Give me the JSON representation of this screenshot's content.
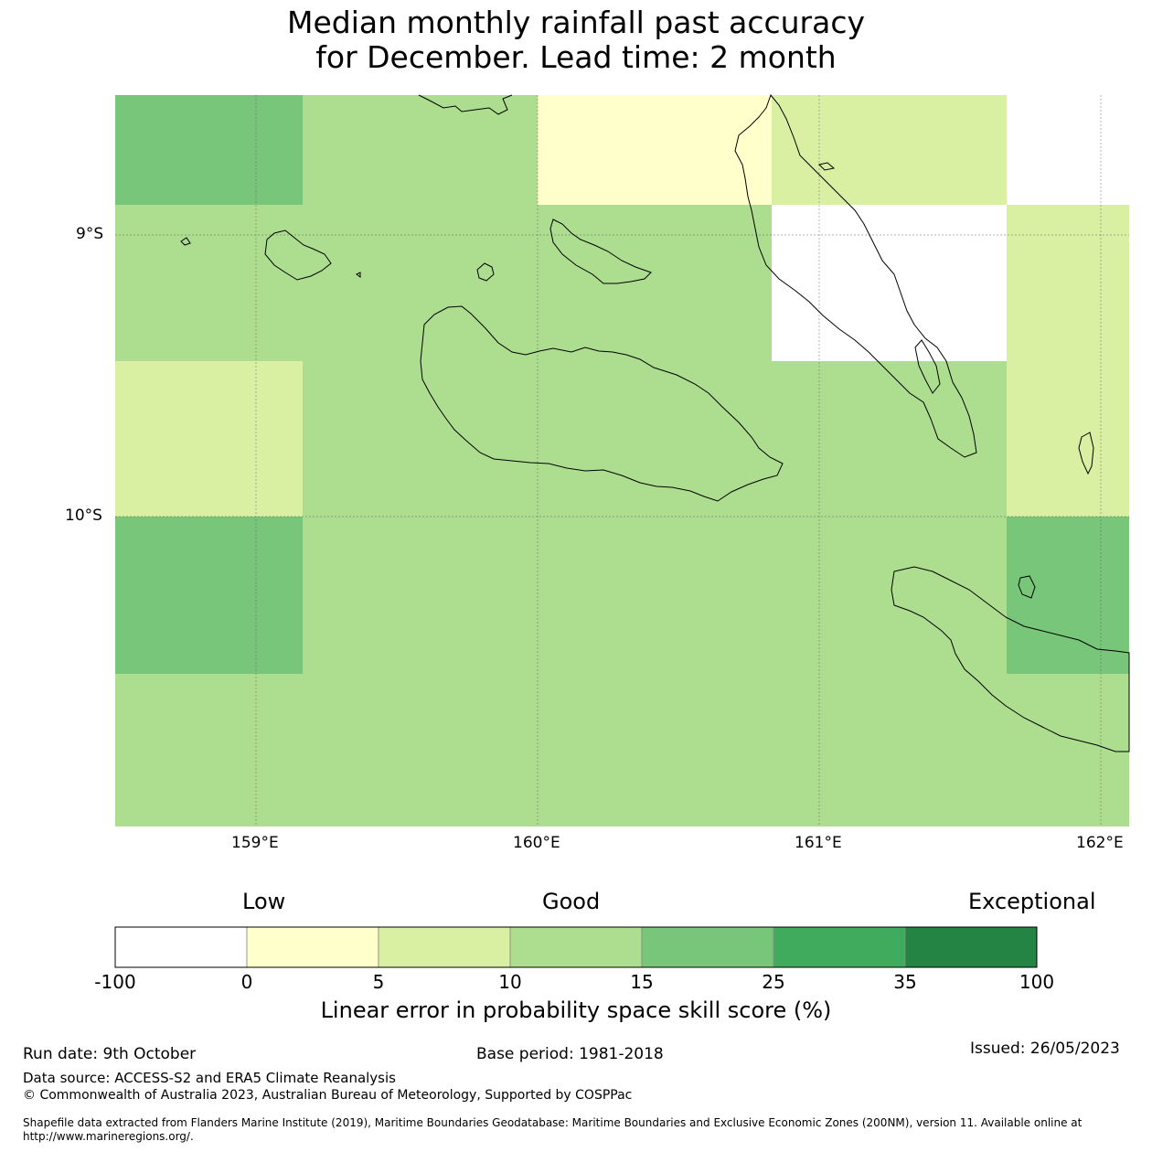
{
  "title": {
    "line1": "Median monthly rainfall past accuracy",
    "line2": "for December. Lead time: 2 month"
  },
  "map": {
    "lat_labels": [
      "9°S",
      "10°S"
    ],
    "lon_labels": [
      "159°E",
      "160°E",
      "161°E",
      "162°E"
    ],
    "extent": {
      "lon": [
        158.5,
        162.1
      ],
      "lat": [
        -8.5,
        -11.1
      ]
    },
    "skill_grid_percent_class": [
      {
        "lon": [
          158.5,
          159.17
        ],
        "lat": [
          -8.5,
          -8.89
        ],
        "class": "15-25"
      },
      {
        "lon": [
          159.17,
          160.0
        ],
        "lat": [
          -8.5,
          -8.89
        ],
        "class": "10-15"
      },
      {
        "lon": [
          160.0,
          160.83
        ],
        "lat": [
          -8.5,
          -8.89
        ],
        "class": "0-5"
      },
      {
        "lon": [
          160.83,
          161.67
        ],
        "lat": [
          -8.5,
          -8.89
        ],
        "class": "5-10"
      },
      {
        "lon": [
          161.67,
          162.1
        ],
        "lat": [
          -8.5,
          -8.89
        ],
        "class": "none"
      },
      {
        "lon": [
          158.5,
          159.17
        ],
        "lat": [
          -8.89,
          -9.44
        ],
        "class": "10-15"
      },
      {
        "lon": [
          159.17,
          160.83
        ],
        "lat": [
          -8.89,
          -9.44
        ],
        "class": "10-15"
      },
      {
        "lon": [
          160.83,
          161.67
        ],
        "lat": [
          -8.89,
          -9.44
        ],
        "class": "-100-0"
      },
      {
        "lon": [
          161.67,
          162.1
        ],
        "lat": [
          -8.89,
          -9.44
        ],
        "class": "5-10"
      },
      {
        "lon": [
          158.5,
          159.17
        ],
        "lat": [
          -9.44,
          -10.0
        ],
        "class": "5-10"
      },
      {
        "lon": [
          159.17,
          161.67
        ],
        "lat": [
          -9.44,
          -10.0
        ],
        "class": "10-15"
      },
      {
        "lon": [
          161.67,
          162.1
        ],
        "lat": [
          -9.44,
          -10.0
        ],
        "class": "5-10"
      },
      {
        "lon": [
          158.5,
          159.17
        ],
        "lat": [
          -10.0,
          -10.56
        ],
        "class": "15-25"
      },
      {
        "lon": [
          159.17,
          161.67
        ],
        "lat": [
          -10.0,
          -10.56
        ],
        "class": "10-15"
      },
      {
        "lon": [
          161.67,
          162.1
        ],
        "lat": [
          -10.0,
          -10.56
        ],
        "class": "15-25"
      },
      {
        "lon": [
          158.5,
          162.1
        ],
        "lat": [
          -10.56,
          -11.1
        ],
        "class": "10-15"
      }
    ]
  },
  "colorbar": {
    "categories": [
      "Low",
      "Good",
      "Exceptional"
    ],
    "ticks": [
      "-100",
      "0",
      "5",
      "10",
      "15",
      "25",
      "35",
      "100"
    ],
    "colors": [
      "#ffffff",
      "#ffffcc",
      "#d9f0a3",
      "#addd8e",
      "#78c679",
      "#41ab5d",
      "#238443"
    ],
    "label": "Linear error in probability space skill score (%)"
  },
  "footer": {
    "run_date": "Run date: 9th October",
    "base_period": "Base period: 1981-2018",
    "issued": "Issued: 26/05/2023",
    "data_source": "Data source: ACCESS-S2 and ERA5 Climate Reanalysis",
    "copyright": "© Commonwealth of Australia 2023, Australian Bureau of Meteorology, Supported by COSPPac",
    "shapefile_line1": "Shapefile data extracted from Flanders Marine Institute (2019), Maritime Boundaries Geodatabase: Maritime Boundaries and Exclusive Economic Zones (200NM), version 11. Available online at",
    "shapefile_line2": "http://www.marineregions.org/."
  }
}
